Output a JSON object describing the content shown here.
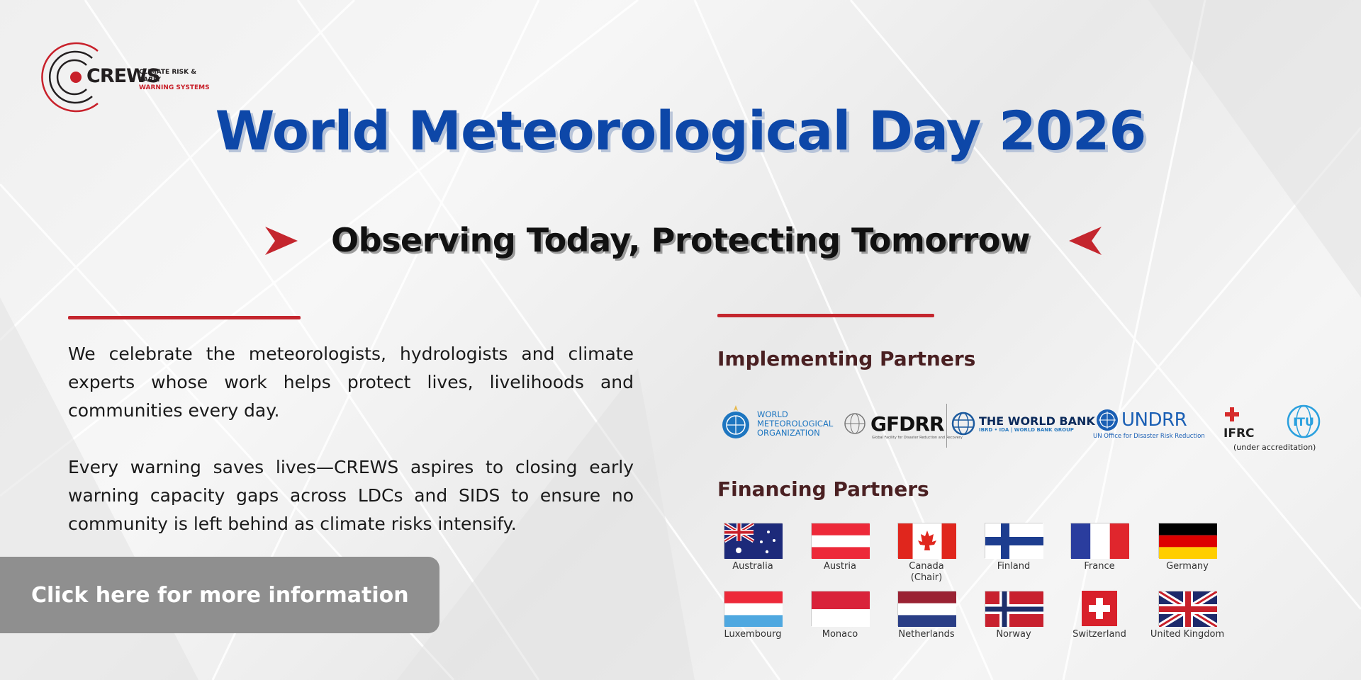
{
  "logo": {
    "wordmark": "CREWS",
    "tagline_line1": "CLIMATE RISK & EARLY",
    "tagline_line2": "WARNING SYSTEMS"
  },
  "title": "World Meteorological Day 2026",
  "subtitle": "Observing Today, Protecting Tomorrow",
  "body": {
    "paragraph1": "We celebrate the meteorologists, hydrologists and climate experts whose work helps protect lives, livelihoods and communities every day.",
    "paragraph2": "Every warning saves lives—CREWS aspires to closing early warning capacity gaps across LDCs and SIDS to ensure no community is left behind as climate risks intensify."
  },
  "cta": {
    "label": "Click here for more information"
  },
  "implementing": {
    "heading": "Implementing Partners",
    "wmo": {
      "line1": "WORLD",
      "line2": "METEOROLOGICAL",
      "line3": "ORGANIZATION"
    },
    "gfdrr": {
      "name": "GFDRR",
      "sub": "Global Facility for Disaster Reduction and Recovery"
    },
    "worldbank": {
      "name": "THE WORLD BANK",
      "sub": "IBRD • IDA | WORLD BANK GROUP"
    },
    "undrr": {
      "name": "UNDRR",
      "sub": "UN Office for Disaster Risk Reduction"
    },
    "ifrc": {
      "name": "IFRC",
      "note": "(under accreditation)"
    },
    "itu": {
      "name": "ITU"
    }
  },
  "financing": {
    "heading": "Financing Partners",
    "countries": [
      {
        "label": "Australia",
        "flag": "australia"
      },
      {
        "label": "Austria",
        "flag": "austria"
      },
      {
        "label": "Canada",
        "label2": "(Chair)",
        "flag": "canada"
      },
      {
        "label": "Finland",
        "flag": "finland"
      },
      {
        "label": "France",
        "flag": "france"
      },
      {
        "label": "Germany",
        "flag": "germany"
      },
      {
        "label": "Luxembourg",
        "flag": "luxembourg"
      },
      {
        "label": "Monaco",
        "flag": "monaco"
      },
      {
        "label": "Netherlands",
        "flag": "netherlands"
      },
      {
        "label": "Norway",
        "flag": "norway"
      },
      {
        "label": "Switzerland",
        "flag": "switzerland"
      },
      {
        "label": "United Kingdom",
        "flag": "united-kingdom"
      }
    ]
  },
  "colors": {
    "title_blue": "#0d47a8",
    "accent_red": "#c4262e",
    "heading_maroon": "#4a2022",
    "cta_gray": "#8f8f8f"
  }
}
